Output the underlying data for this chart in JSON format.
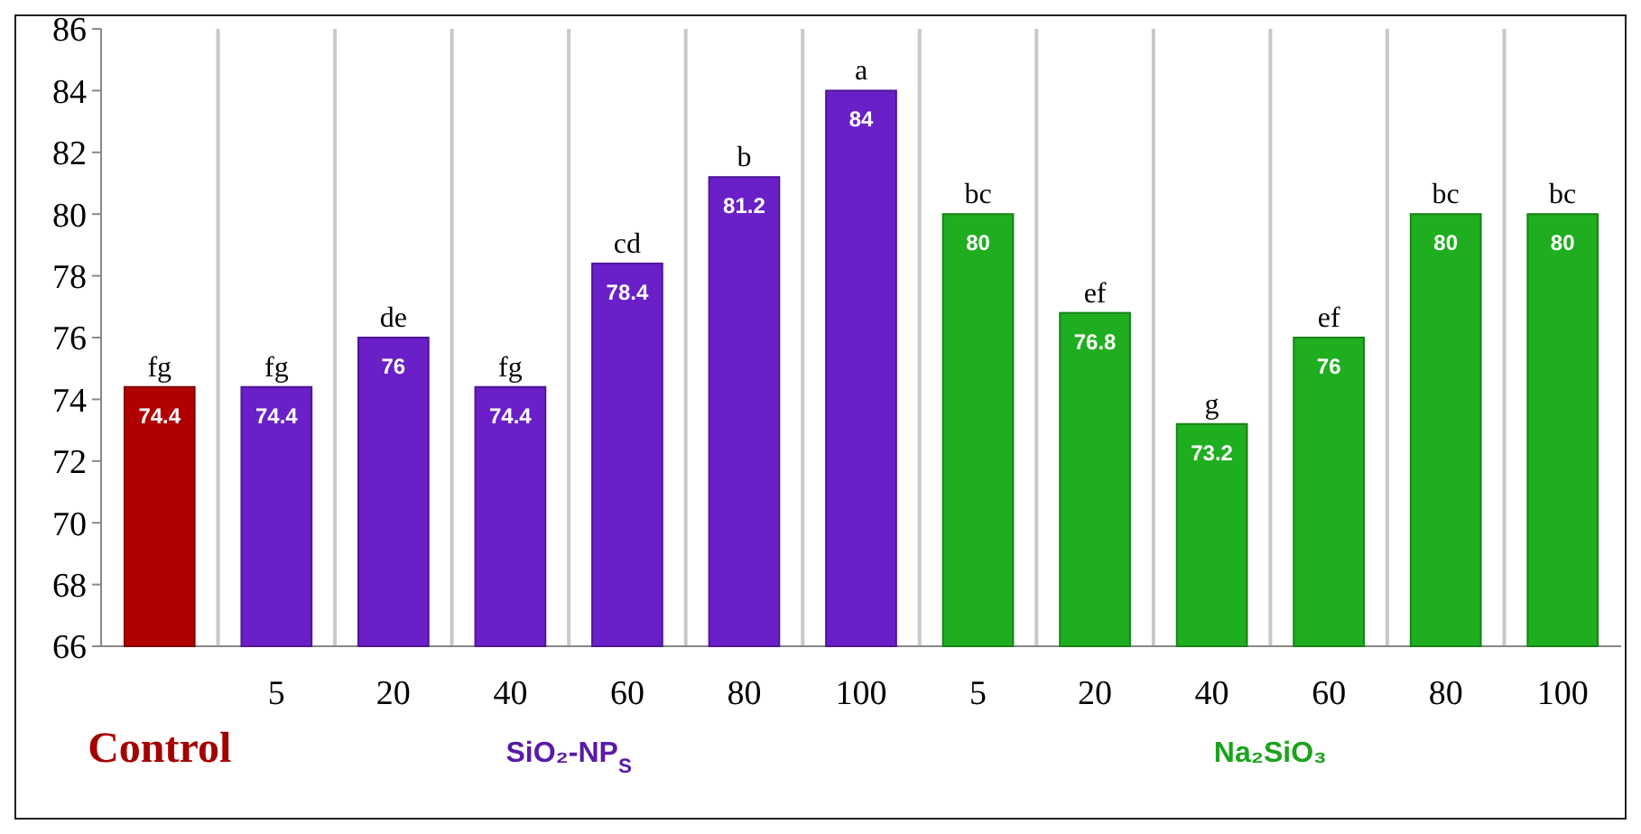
{
  "chart_data": {
    "type": "bar",
    "categories": [
      null,
      "5",
      "20",
      "40",
      "60",
      "80",
      "100",
      "5",
      "20",
      "40",
      "60",
      "80",
      "100"
    ],
    "values": [
      74.4,
      74.4,
      76,
      74.4,
      78.4,
      81.2,
      84,
      80,
      76.8,
      73.2,
      76,
      80,
      80
    ],
    "colors": [
      "#b00000",
      "#6a1fc8",
      "#6a1fc8",
      "#6a1fc8",
      "#6a1fc8",
      "#6a1fc8",
      "#6a1fc8",
      "#1fae1f",
      "#1fae1f",
      "#1fae1f",
      "#1fae1f",
      "#1fae1f",
      "#1fae1f"
    ],
    "ylim": [
      66,
      86
    ],
    "yticks": [
      66,
      68,
      70,
      72,
      74,
      76,
      78,
      80,
      82,
      84,
      86
    ],
    "grid": "x",
    "data_labels": true,
    "annotations": [
      "fg",
      "fg",
      "de",
      "fg",
      "cd",
      "b",
      "a",
      "bc",
      "ef",
      "g",
      "ef",
      "bc",
      "bc",
      "Control",
      "SiO₂-NP$_{S}$",
      "Na₂SiO₃"
    ]
  }
}
